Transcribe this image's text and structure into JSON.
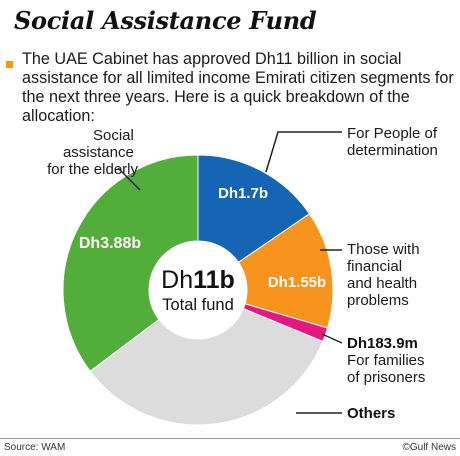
{
  "title": "Social Assistance Fund",
  "intro": "The UAE Cabinet has approved Dh11 billion in social assistance for all limited income Emirati citizen segments for the next three years. Here is a quick breakdown of the allocation:",
  "center": {
    "prefix": "Dh",
    "amount": "11b",
    "caption": "Total fund"
  },
  "source": "Source: WAM",
  "credit": "©Gulf News",
  "colors": {
    "bullet": "#f7941d",
    "leader": "#222222"
  },
  "chart_data": {
    "type": "pie",
    "variant": "donut",
    "unit": "Dh billion",
    "total": 11,
    "slices": [
      {
        "label": "For People of determination",
        "value": 1.7,
        "value_label": "Dh1.7b",
        "color": "#1565b4"
      },
      {
        "label": "Those with financial and health problems",
        "value": 1.55,
        "value_label": "Dh1.55b",
        "color": "#f7941d"
      },
      {
        "label": "For families of prisoners",
        "value": 0.1839,
        "value_label": "Dh183.9m",
        "color": "#e6187f"
      },
      {
        "label": "Others",
        "value": 3.6861,
        "value_label": "",
        "color": "#dcdcdc"
      },
      {
        "label": "Social assistance for the elderly",
        "value": 3.88,
        "value_label": "Dh3.88b",
        "color": "#52ad3b"
      }
    ]
  }
}
